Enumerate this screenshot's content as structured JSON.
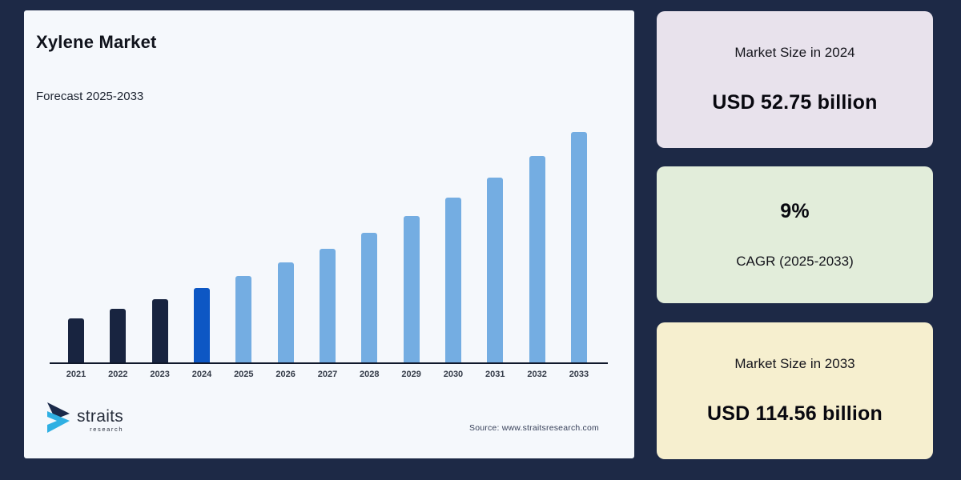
{
  "page": {
    "background": "#1d2946"
  },
  "panel": {
    "title": "Xylene Market",
    "subtitle": "Forecast 2025-2033",
    "source": "Source: www.straitsresearch.com",
    "logo": {
      "name": "straits",
      "sub": "research"
    }
  },
  "chart_data": {
    "type": "bar",
    "title": "Xylene Market",
    "subtitle": "Forecast 2025-2033",
    "unit": "USD billion",
    "categories": [
      "2021",
      "2022",
      "2023",
      "2024",
      "2025",
      "2026",
      "2027",
      "2028",
      "2029",
      "2030",
      "2031",
      "2032",
      "2033"
    ],
    "values": [
      40.73,
      44.4,
      48.39,
      52.75,
      57.5,
      62.67,
      68.31,
      74.46,
      81.16,
      88.47,
      96.43,
      105.11,
      114.56
    ],
    "bar_roles": [
      "historical",
      "historical",
      "historical",
      "base",
      "forecast",
      "forecast",
      "forecast",
      "forecast",
      "forecast",
      "forecast",
      "forecast",
      "forecast",
      "forecast"
    ],
    "colors": {
      "historical": "#182440",
      "base": "#0d57c4",
      "forecast": "#74ade2",
      "axis": "#10182b"
    },
    "xlabel": "",
    "ylabel": "",
    "grid": false,
    "y_axis_visible": false,
    "ylim": [
      23.2,
      120
    ],
    "annotations": {
      "market_size_2024": "USD 52.75 billion",
      "cagr": "9% (2025-2033)",
      "market_size_2033": "USD 114.56 billion"
    }
  },
  "cards": [
    {
      "bg": "#e8e2ec",
      "lines": [
        {
          "kind": "label",
          "text": "Market Size in 2024"
        },
        {
          "kind": "value",
          "text": "USD 52.75 billion"
        }
      ]
    },
    {
      "bg": "#e2edda",
      "lines": [
        {
          "kind": "value",
          "text": "9%"
        },
        {
          "kind": "label",
          "text": "CAGR (2025-2033)"
        }
      ]
    },
    {
      "bg": "#f6efcf",
      "lines": [
        {
          "kind": "label",
          "text": "Market Size in 2033"
        },
        {
          "kind": "value",
          "text": "USD 114.56 billion"
        }
      ]
    }
  ],
  "logo_colors": {
    "dark": "#1b2a4a",
    "blue": "#2fb0e3"
  }
}
